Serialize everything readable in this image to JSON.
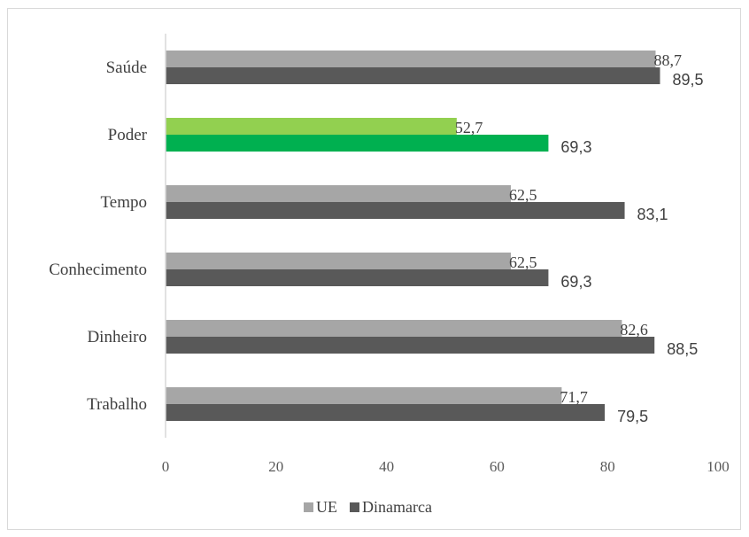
{
  "chart_data": {
    "type": "bar",
    "orientation": "horizontal",
    "categories": [
      "Saúde",
      "Poder",
      "Tempo",
      "Conhecimento",
      "Dinheiro",
      "Trabalho"
    ],
    "series": [
      {
        "name": "UE",
        "values": [
          88.7,
          52.7,
          62.5,
          62.5,
          82.6,
          71.7
        ],
        "labels": [
          "88,7",
          "52,7",
          "62,5",
          "62,5",
          "82,6",
          "71,7"
        ],
        "color": "#a6a6a6"
      },
      {
        "name": "Dinamarca",
        "values": [
          89.5,
          69.3,
          83.1,
          69.3,
          88.5,
          79.5
        ],
        "labels": [
          "89,5",
          "69,3",
          "83,1",
          "69,3",
          "88,5",
          "79,5"
        ],
        "color": "#595959"
      }
    ],
    "highlight": {
      "category": "Poder",
      "colors": [
        "#92d050",
        "#00b050"
      ]
    },
    "xlim": [
      0,
      100
    ],
    "xticks": [
      0,
      20,
      40,
      60,
      80,
      100
    ],
    "grid": false,
    "legend_position": "bottom"
  }
}
